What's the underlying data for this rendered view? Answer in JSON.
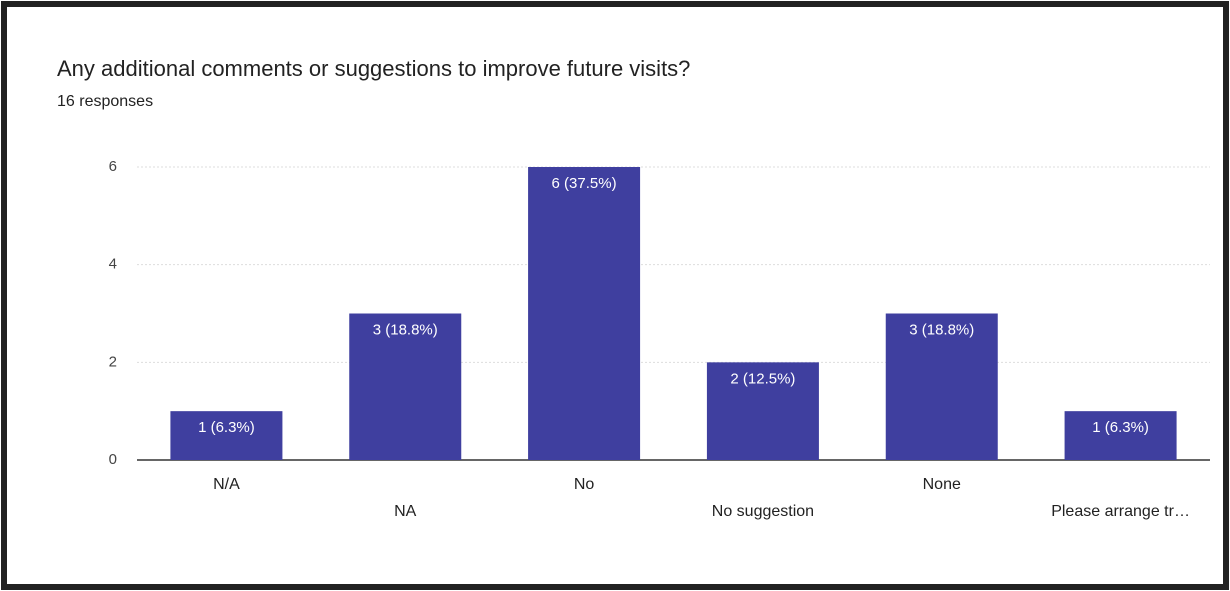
{
  "chart_data": {
    "type": "bar",
    "title": "Any additional comments or suggestions to improve future visits?",
    "subtitle": "16 responses",
    "categories": [
      "N/A",
      "NA",
      "No",
      "No suggestion",
      "None",
      "Please arrange tr…"
    ],
    "values": [
      1,
      3,
      6,
      2,
      3,
      1
    ],
    "value_labels": [
      "1 (6.3%)",
      "3 (18.8%)",
      "6 (37.5%)",
      "2 (12.5%)",
      "3 (18.8%)",
      "1 (6.3%)"
    ],
    "color": "#3f3f9f",
    "ylim": [
      0,
      6
    ],
    "yticks": [
      0,
      2,
      4,
      6
    ],
    "grid": true
  }
}
